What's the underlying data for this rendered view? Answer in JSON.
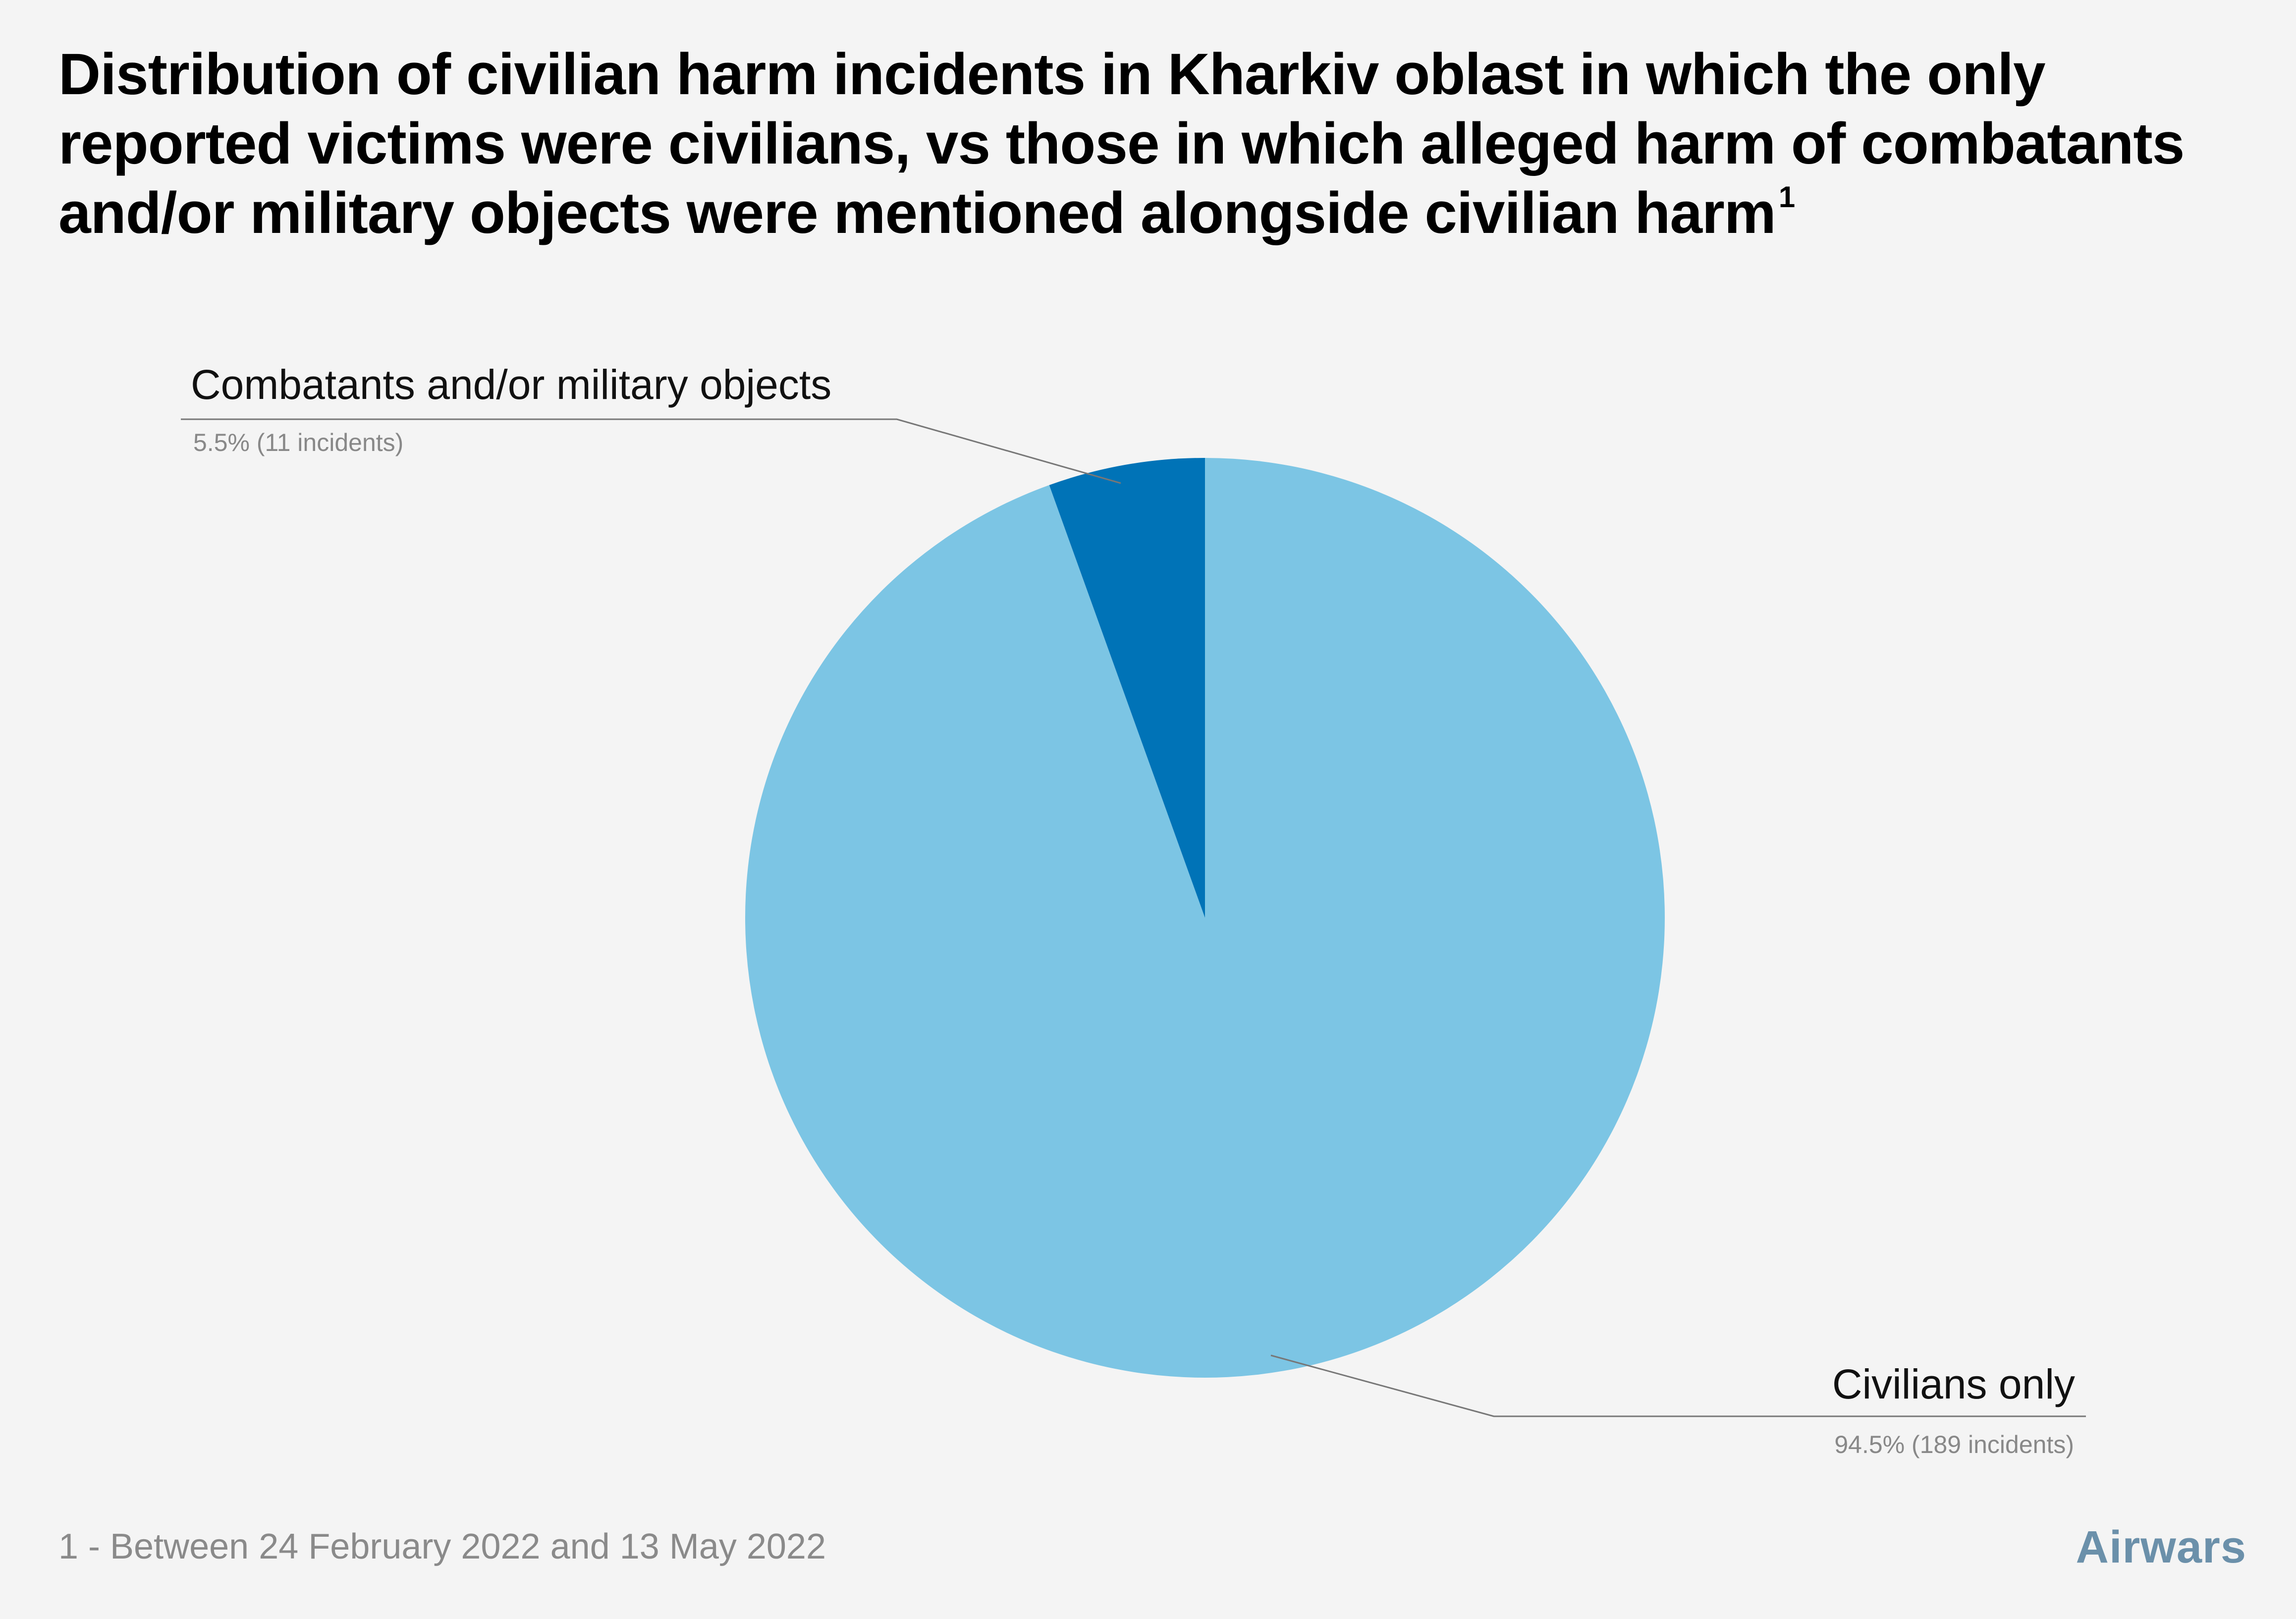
{
  "title": {
    "text": "Distribution of civilian harm incidents in Kharkiv oblast in which the only reported victims were civilians, vs those in which alleged harm of combatants and/or military objects were mentioned alongside civilian harm",
    "superscript": "1"
  },
  "footnote": "1 - Between 24 February 2022 and 13 May 2022",
  "brand": "Airwars",
  "colors": {
    "background": "#f4f4f4",
    "civilians_only": "#7cc5e4",
    "combatants": "#0073b7",
    "leader_line": "#777777",
    "detail_text": "#888888",
    "brand": "#6b90aa"
  },
  "chart_data": {
    "type": "pie",
    "title": "Distribution of civilian harm incidents in Kharkiv oblast in which the only reported victims were civilians, vs those in which alleged harm of combatants and/or military objects were mentioned alongside civilian harm",
    "slices": [
      {
        "key": "combatants",
        "label": "Combatants and/or military objects",
        "value": 11,
        "percent": 5.5,
        "detail": "5.5% (11 incidents)",
        "color": "#0073b7"
      },
      {
        "key": "civilians",
        "label": "Civilians only",
        "value": 189,
        "percent": 94.5,
        "detail": "94.5% (189 incidents)",
        "color": "#7cc5e4"
      }
    ],
    "start_angle": "top, clockwise from 12 o'clock",
    "legend": "none"
  }
}
